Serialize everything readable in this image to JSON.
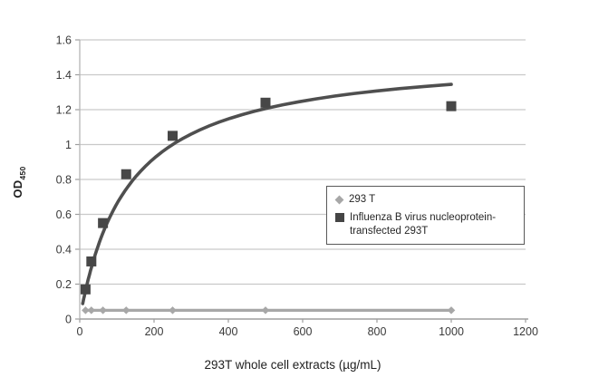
{
  "chart_data": {
    "type": "scatter",
    "title": "",
    "xlabel": "293T whole cell extracts (µg/mL)",
    "ylabel": {
      "main": "OD",
      "sub": "450"
    },
    "xlim": [
      0,
      1200
    ],
    "ylim": [
      0,
      1.6
    ],
    "grid": true,
    "legend_position": "middle-right",
    "x_ticks": [
      0,
      200,
      400,
      600,
      800,
      1000,
      1200
    ],
    "x_tick_labels": [
      "0",
      "200",
      "400",
      "600",
      "800",
      "1000",
      "1200"
    ],
    "y_ticks": [
      0,
      0.2,
      0.4,
      0.6,
      0.8,
      1,
      1.2,
      1.4,
      1.6
    ],
    "y_tick_labels": [
      "0",
      "0.2",
      "0.4",
      "0.6",
      "0.8",
      "1",
      "1.2",
      "1.4",
      "1.6"
    ],
    "series": [
      {
        "name": "293 T",
        "marker": "diamond",
        "color": "#a7a7a7",
        "line": true,
        "line_width": 3.2,
        "x": [
          15.6,
          31.25,
          62.5,
          125,
          250,
          500,
          1000
        ],
        "y": [
          0.05,
          0.05,
          0.05,
          0.05,
          0.05,
          0.05,
          0.05
        ]
      },
      {
        "name": "Influenza B virus nucleoprotein-transfected 293T",
        "marker": "square",
        "color": "#474747",
        "line": false,
        "x": [
          15.6,
          31.25,
          62.5,
          125,
          250,
          500,
          1000
        ],
        "y": [
          0.17,
          0.33,
          0.55,
          0.83,
          1.05,
          1.24,
          1.22
        ]
      }
    ],
    "trendline": {
      "applies_to": "Influenza B virus nucleoprotein-transfected 293T",
      "model": "y = Bmax*x/(Kd+x)",
      "bmax": 1.52,
      "kd": 130,
      "x_range": [
        8,
        1000
      ],
      "color": "#4f4f4f",
      "width": 3.6
    },
    "colors": {
      "gridline": "#c9c9c9",
      "axis": "#9e9e9e",
      "tick_label": "#3a3a3a",
      "axis_title": "#1f1f1f",
      "background": "#ffffff",
      "legend_border": "#595959"
    }
  }
}
